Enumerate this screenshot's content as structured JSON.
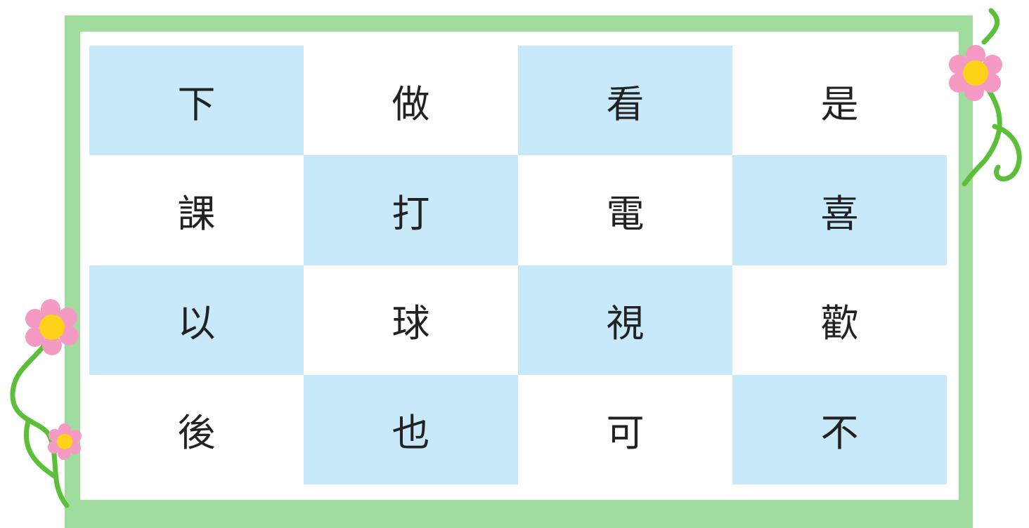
{
  "grid": {
    "rows": [
      [
        "下",
        "做",
        "看",
        "是"
      ],
      [
        "課",
        "打",
        "電",
        "喜"
      ],
      [
        "以",
        "球",
        "視",
        "歡"
      ],
      [
        "後",
        "也",
        "可",
        "不"
      ]
    ]
  }
}
